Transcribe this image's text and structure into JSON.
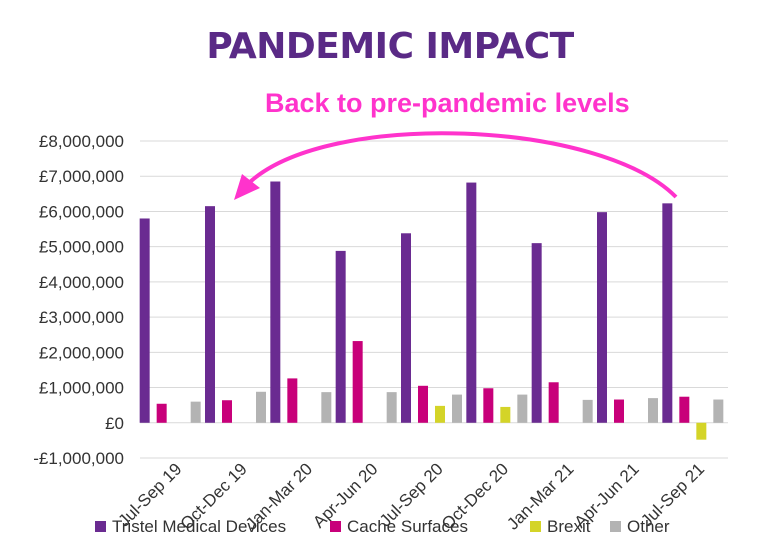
{
  "title": "PANDEMIC IMPACT",
  "annotation": "Back to pre-pandemic levels",
  "colors": {
    "title": "#5a2a86",
    "annotation": "#ff33cc",
    "tristel": "#6a2b91",
    "cache": "#c8007a",
    "brexit": "#d4d428",
    "other": "#b3b3b3",
    "grid": "#d9d9d9",
    "text": "#333333"
  },
  "chart_data": {
    "type": "bar",
    "title": "PANDEMIC IMPACT",
    "categories": [
      "Jul-Sep 19",
      "Oct-Dec 19",
      "Jan-Mar 20",
      "Apr-Jun 20",
      "Jul-Sep 20",
      "Oct-Dec 20",
      "Jan-Mar 21",
      "Apr-Jun 21",
      "Jul-Sep 21"
    ],
    "series": [
      {
        "name": "Tristel Medical Devices",
        "color": "#6a2b91",
        "values": [
          5800000,
          6150000,
          6850000,
          4880000,
          5380000,
          6820000,
          5100000,
          5980000,
          6230000
        ]
      },
      {
        "name": "Cache Surfaces",
        "color": "#c8007a",
        "values": [
          540000,
          640000,
          1260000,
          2320000,
          1050000,
          980000,
          1150000,
          660000,
          740000
        ]
      },
      {
        "name": "Brexit",
        "color": "#d4d428",
        "values": [
          null,
          null,
          null,
          null,
          480000,
          450000,
          null,
          null,
          -480000
        ]
      },
      {
        "name": "Other",
        "color": "#b3b3b3",
        "values": [
          600000,
          880000,
          870000,
          870000,
          800000,
          800000,
          650000,
          700000,
          660000
        ]
      }
    ],
    "ylim": [
      -1000000,
      8000000
    ],
    "yticks": [
      -1000000,
      0,
      1000000,
      2000000,
      3000000,
      4000000,
      5000000,
      6000000,
      7000000,
      8000000
    ],
    "ytick_labels": [
      "-£1,000,000",
      "£0",
      "£1,000,000",
      "£2,000,000",
      "£3,000,000",
      "£4,000,000",
      "£5,000,000",
      "£6,000,000",
      "£7,000,000",
      "£8,000,000"
    ],
    "grid": true,
    "legend": "bottom",
    "xlabel": "",
    "ylabel": ""
  }
}
